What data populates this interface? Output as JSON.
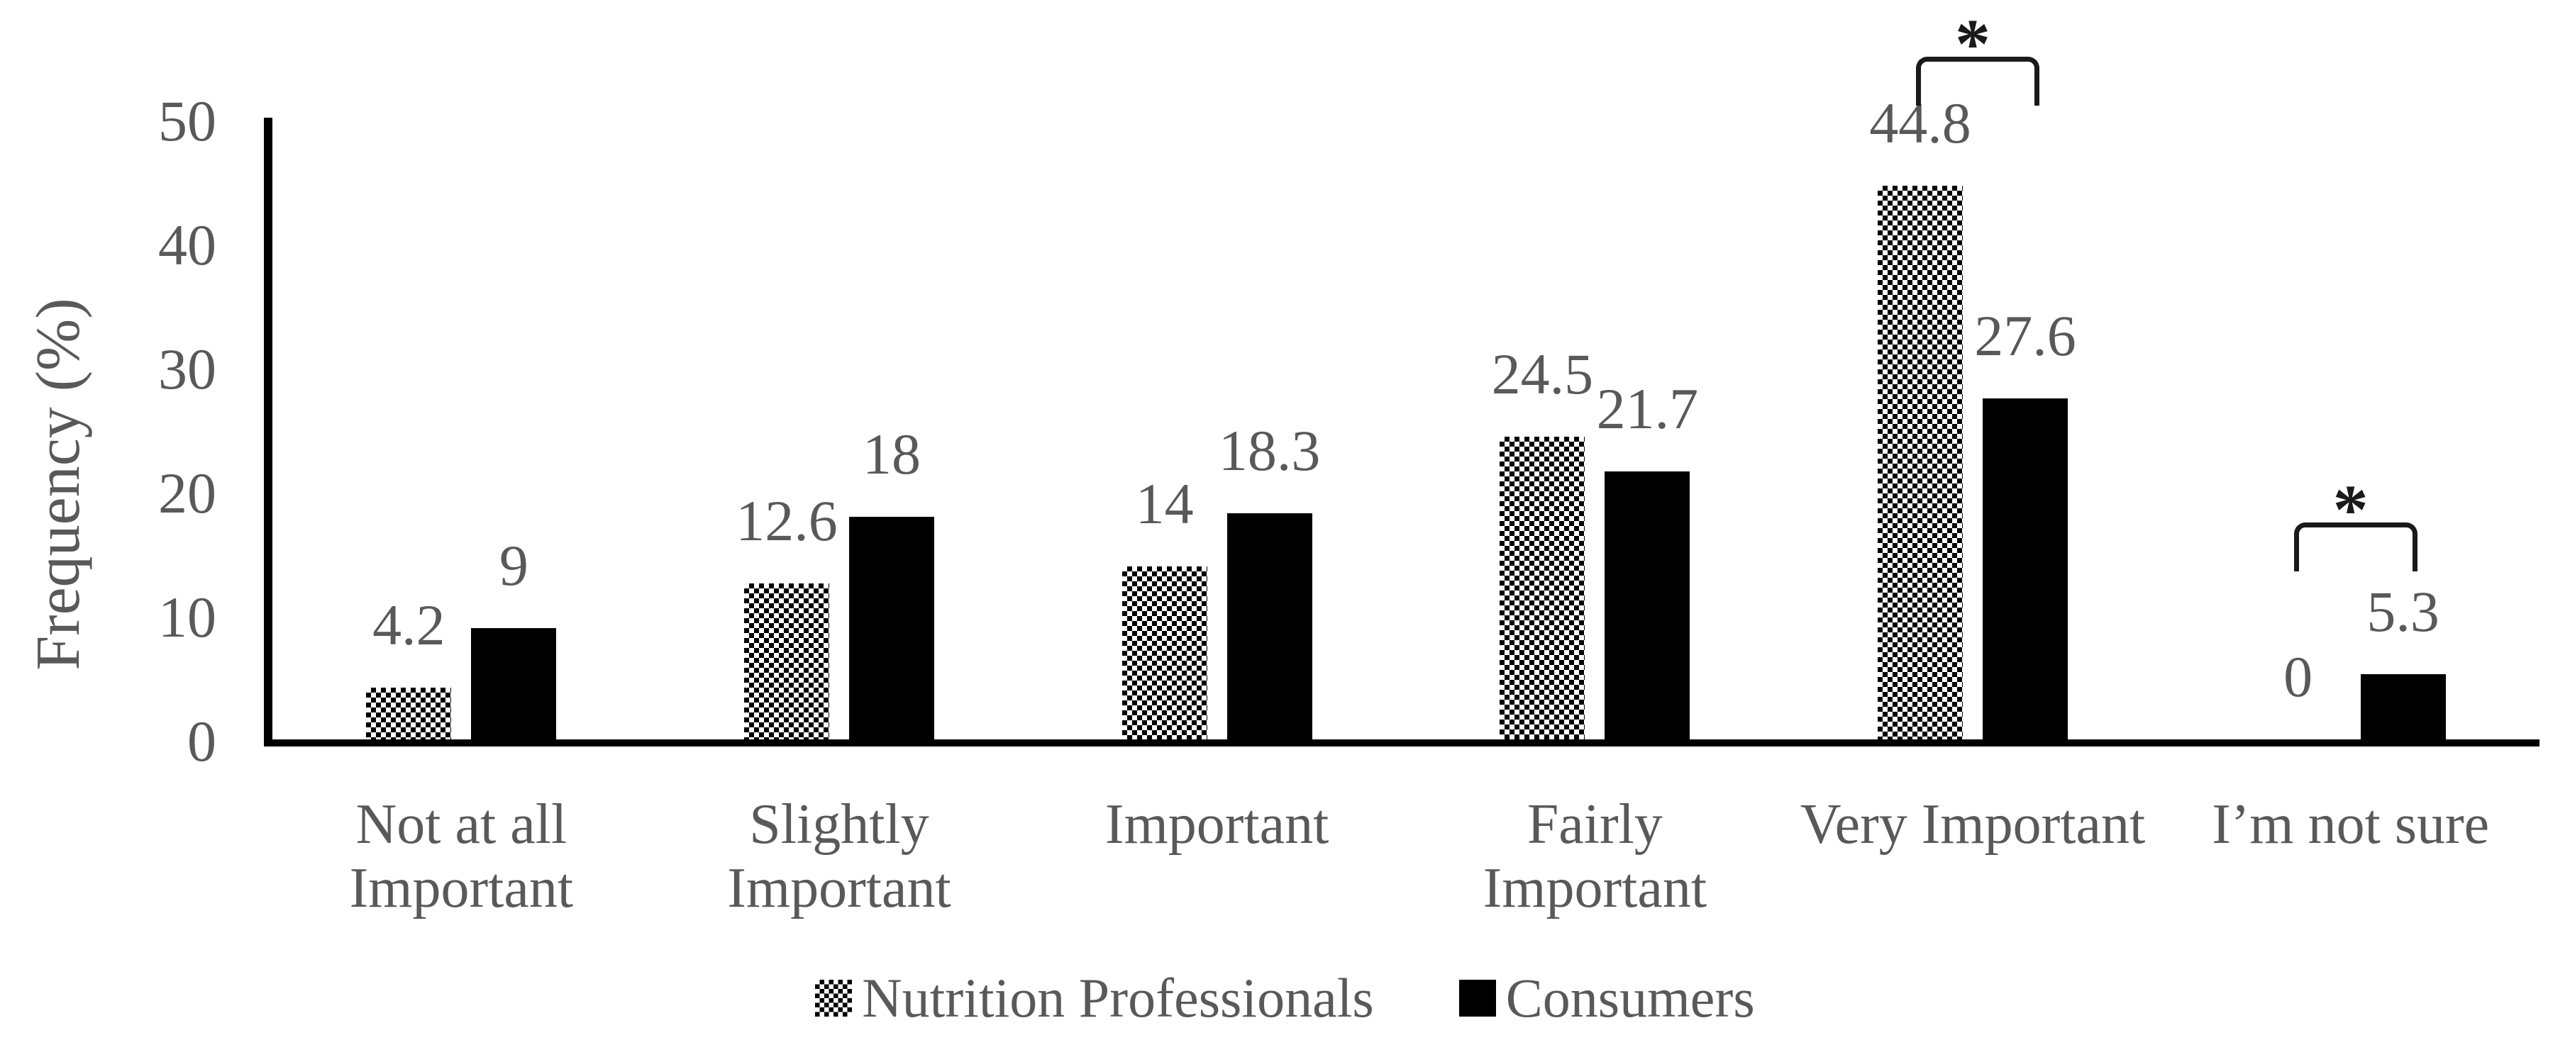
{
  "chart_data": {
    "type": "bar",
    "title": "",
    "xlabel": "",
    "ylabel": "Frequency (%)",
    "ylim": [
      0,
      50
    ],
    "yticks": [
      0,
      10,
      20,
      30,
      40,
      50
    ],
    "grid": false,
    "legend_position": "bottom-center",
    "categories": [
      {
        "label": "Not at all Important",
        "lines": [
          "Not at all",
          "Important"
        ]
      },
      {
        "label": "Slightly Important",
        "lines": [
          "Slightly",
          "Important"
        ]
      },
      {
        "label": "Important",
        "lines": [
          "Important"
        ]
      },
      {
        "label": "Fairly Important",
        "lines": [
          "Fairly",
          "Important"
        ]
      },
      {
        "label": "Very Important",
        "lines": [
          "Very Important"
        ]
      },
      {
        "label": "I’m not sure",
        "lines": [
          "I’m not sure"
        ]
      }
    ],
    "series": [
      {
        "name": "Nutrition Professionals",
        "fill": "dotted-pattern",
        "values": [
          4.2,
          12.6,
          14,
          24.5,
          44.8,
          0
        ],
        "labels": [
          "4.2",
          "12.6",
          "14",
          "24.5",
          "44.8",
          "0"
        ]
      },
      {
        "name": "Consumers",
        "fill": "solid-black",
        "values": [
          9,
          18,
          18.3,
          21.7,
          27.6,
          5.3
        ],
        "labels": [
          "9",
          "18",
          "18.3",
          "21.7",
          "27.6",
          "5.3"
        ]
      }
    ],
    "annotations": [
      {
        "category": "Very Important",
        "symbol": "*",
        "type": "significance-bracket"
      },
      {
        "category": "I’m not sure",
        "symbol": "*",
        "type": "significance-bracket"
      }
    ],
    "colors": {
      "bar_black": "#000000",
      "pattern_black": "#000000",
      "text_gray": "#595959",
      "axis_black": "#000000",
      "background": "#ffffff"
    }
  }
}
